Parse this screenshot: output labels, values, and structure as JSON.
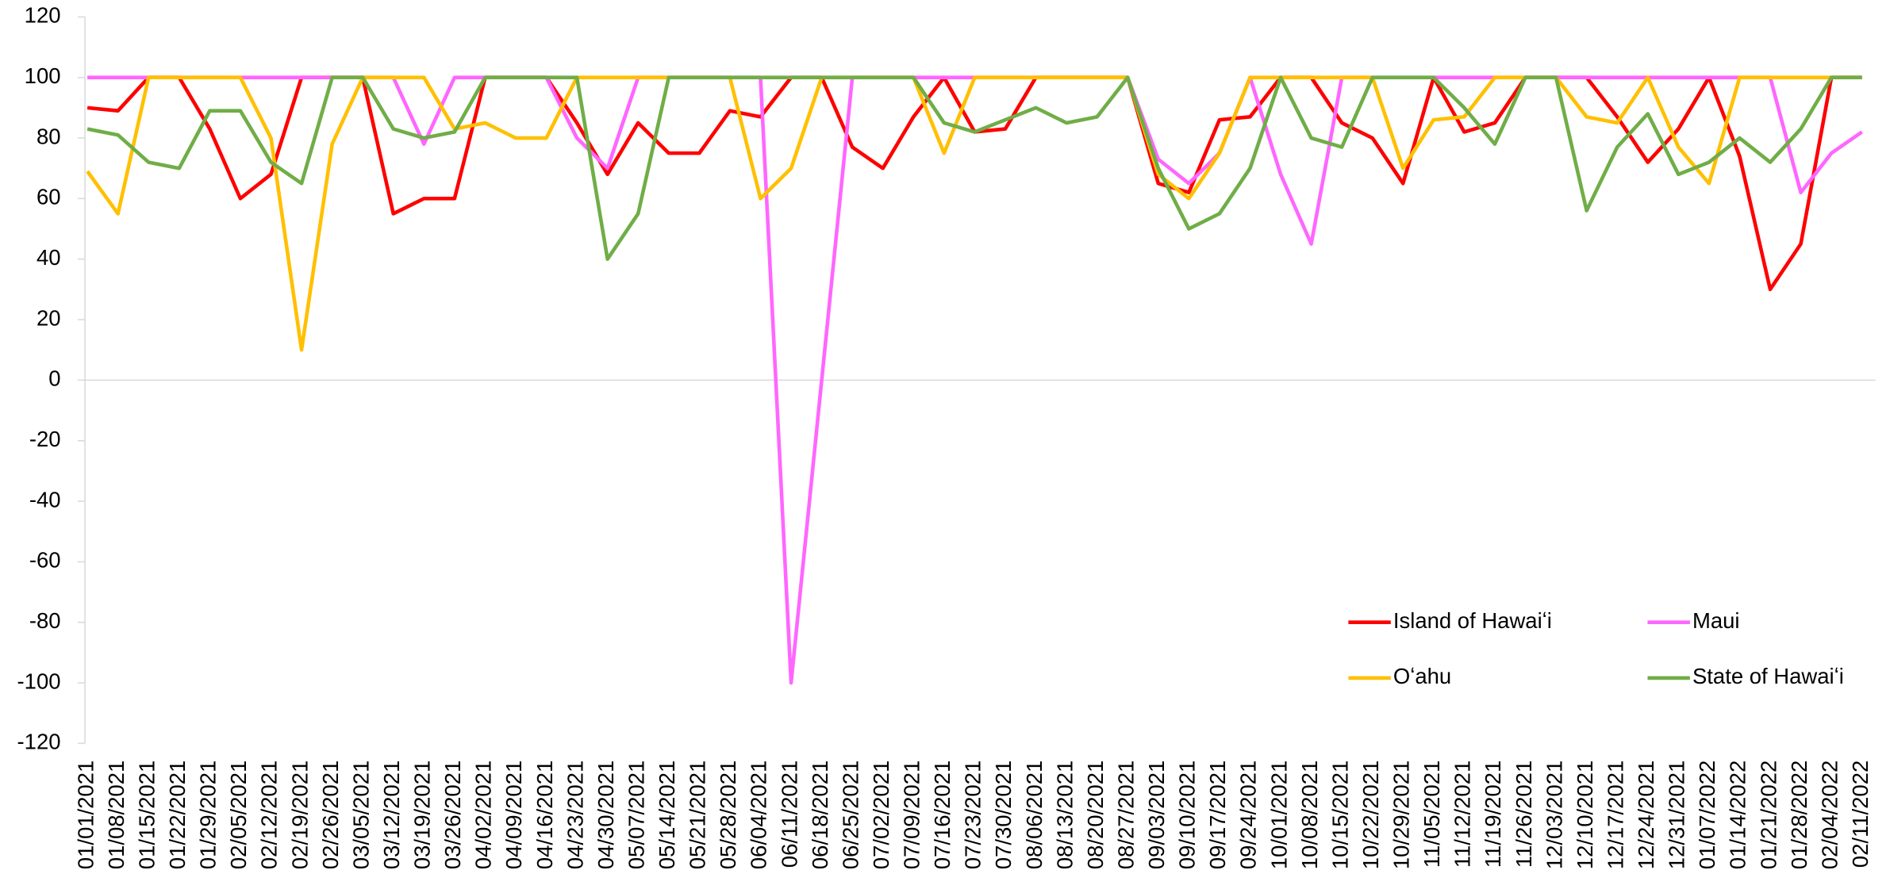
{
  "chart_data": {
    "type": "line",
    "categories": [
      "01/01/2021",
      "01/08/2021",
      "01/15/2021",
      "01/22/2021",
      "01/29/2021",
      "02/05/2021",
      "02/12/2021",
      "02/19/2021",
      "02/26/2021",
      "03/05/2021",
      "03/12/2021",
      "03/19/2021",
      "03/26/2021",
      "04/02/2021",
      "04/09/2021",
      "04/16/2021",
      "04/23/2021",
      "04/30/2021",
      "05/07/2021",
      "05/14/2021",
      "05/21/2021",
      "05/28/2021",
      "06/04/2021",
      "06/11/2021",
      "06/18/2021",
      "06/25/2021",
      "07/02/2021",
      "07/09/2021",
      "07/16/2021",
      "07/23/2021",
      "07/30/2021",
      "08/06/2021",
      "08/13/2021",
      "08/20/2021",
      "08/27/2021",
      "09/03/2021",
      "09/10/2021",
      "09/17/2021",
      "09/24/2021",
      "10/01/2021",
      "10/08/2021",
      "10/15/2021",
      "10/22/2021",
      "10/29/2021",
      "11/05/2021",
      "11/12/2021",
      "11/19/2021",
      "11/26/2021",
      "12/03/2021",
      "12/10/2021",
      "12/17/2021",
      "12/24/2021",
      "12/31/2021",
      "01/07/2022",
      "01/14/2022",
      "01/21/2022",
      "01/28/2022",
      "02/04/2022",
      "02/11/2022"
    ],
    "series": [
      {
        "name": "Island of Hawaiʻi",
        "color": "#ff0000",
        "values": [
          90,
          89,
          100,
          100,
          83,
          60,
          68,
          100,
          100,
          100,
          55,
          60,
          60,
          100,
          100,
          100,
          85,
          68,
          85,
          75,
          75,
          89,
          87,
          100,
          100,
          77,
          70,
          87,
          100,
          82,
          83,
          100,
          100,
          100,
          100,
          65,
          62,
          86,
          87,
          100,
          100,
          85,
          80,
          65,
          100,
          82,
          85,
          100,
          100,
          100,
          87,
          72,
          83,
          100,
          74,
          30,
          45,
          100,
          100
        ]
      },
      {
        "name": "Maui",
        "color": "#ff66ff",
        "values": [
          100,
          100,
          100,
          100,
          100,
          100,
          100,
          100,
          100,
          100,
          100,
          78,
          100,
          100,
          100,
          100,
          80,
          70,
          100,
          100,
          100,
          100,
          100,
          -100,
          0,
          100,
          100,
          100,
          100,
          100,
          100,
          100,
          100,
          100,
          100,
          73,
          65,
          75,
          100,
          68,
          45,
          100,
          100,
          100,
          100,
          100,
          100,
          100,
          100,
          100,
          100,
          100,
          100,
          100,
          100,
          100,
          62,
          75,
          82
        ]
      },
      {
        "name": "Oʻahu",
        "color": "#ffc000",
        "values": [
          69,
          55,
          100,
          100,
          100,
          100,
          80,
          10,
          78,
          100,
          100,
          100,
          83,
          85,
          80,
          80,
          100,
          100,
          100,
          100,
          100,
          100,
          60,
          70,
          100,
          100,
          100,
          100,
          75,
          100,
          100,
          100,
          100,
          100,
          100,
          68,
          60,
          75,
          100,
          100,
          100,
          100,
          100,
          70,
          86,
          87,
          100,
          100,
          100,
          87,
          85,
          100,
          77,
          65,
          100,
          100,
          100,
          100,
          100
        ]
      },
      {
        "name": "State of Hawaiʻi",
        "color": "#70ad47",
        "values": [
          83,
          81,
          72,
          70,
          89,
          89,
          72,
          65,
          100,
          100,
          83,
          80,
          82,
          100,
          100,
          100,
          100,
          40,
          55,
          100,
          100,
          100,
          100,
          100,
          100,
          100,
          100,
          100,
          85,
          82,
          86,
          90,
          85,
          87,
          100,
          70,
          50,
          55,
          70,
          100,
          80,
          77,
          100,
          100,
          100,
          90,
          78,
          100,
          100,
          56,
          77,
          88,
          68,
          72,
          80,
          72,
          83,
          100,
          100
        ]
      }
    ],
    "ylim": [
      -120,
      120
    ],
    "yticks": [
      -120,
      -100,
      -80,
      -60,
      -40,
      -20,
      0,
      20,
      40,
      60,
      80,
      100,
      120
    ],
    "legend": "lower-right"
  }
}
